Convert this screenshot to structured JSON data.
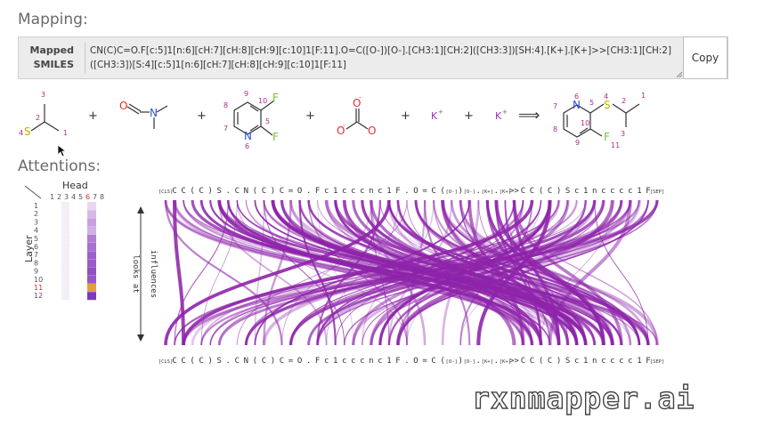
{
  "headings": {
    "mapping": "Mapping:",
    "attentions": "Attentions:"
  },
  "smiles": {
    "label_line1": "Mapped",
    "label_line2": "SMILES",
    "value": "CN(C)C=O.F[c:5]1[n:6][cH:7][cH:8][cH:9][c:10]1[F:11].O=C([O-])[O-].[CH3:1][CH:2]([CH3:3])[SH:4].[K+].[K+]>>[CH3:1][CH:2]([CH3:3])[S:4][c:5]1[n:6][cH:7][cH:8][cH:9][c:10]1[F:11]",
    "copy_label": "Copy"
  },
  "reaction": {
    "reactant1": {
      "atoms": [
        "3",
        "2",
        "4",
        "S",
        "1"
      ]
    },
    "reactant2": {
      "atoms": [
        "O",
        "N"
      ]
    },
    "reactant3": {
      "atoms": [
        "9",
        "10",
        "F",
        "8",
        "7",
        "N",
        "5",
        "F",
        "6"
      ]
    },
    "reactant4": {
      "atoms": [
        "O",
        "-",
        "O",
        "-",
        "O"
      ]
    },
    "ion1": "K+",
    "ion2": "K+",
    "plus": "+",
    "arrow": "⟹",
    "product": {
      "atoms": [
        "6",
        "5",
        "N",
        "4",
        "S",
        "2",
        "1",
        "7",
        "10",
        "8",
        "9",
        "F",
        "11",
        "3"
      ]
    }
  },
  "heads_panel": {
    "title": "Head",
    "axis_label": "Layer",
    "heads": [
      "1",
      "2",
      "3",
      "4",
      "5",
      "6",
      "7",
      "8"
    ],
    "layers": [
      "1",
      "2",
      "3",
      "4",
      "5",
      "6",
      "7",
      "8",
      "9",
      "10",
      "11",
      "12"
    ],
    "selected_head": "6",
    "selected_layer": "11"
  },
  "attention_view": {
    "left_label_top": "looks at",
    "left_label_bottom": "influences",
    "tokens": [
      "[CLS]",
      "C",
      "C",
      "(",
      "C",
      ")",
      "S",
      ".",
      "C",
      "N",
      "(",
      "C",
      ")",
      "C",
      "=",
      "O",
      ".",
      "F",
      "c",
      "1",
      "c",
      "c",
      "c",
      "n",
      "c",
      "1",
      "F",
      ".",
      "O",
      "=",
      "C",
      "(",
      "[O-]",
      ")",
      "[O-]",
      ".",
      "[K+]",
      ".",
      "[K+]",
      ">>",
      "C",
      "C",
      "(",
      "C",
      ")",
      "S",
      "c",
      "1",
      "n",
      "c",
      "c",
      "c",
      "c",
      "1",
      "F",
      "[SEP]"
    ]
  },
  "watermark": "rxnmapper.ai",
  "colors": {
    "accent": "#8e24aa",
    "chem_red": "#e03030",
    "chem_magenta": "#c2185b",
    "sulfur": "#b8b800",
    "label_pink": "#b02a8a"
  }
}
